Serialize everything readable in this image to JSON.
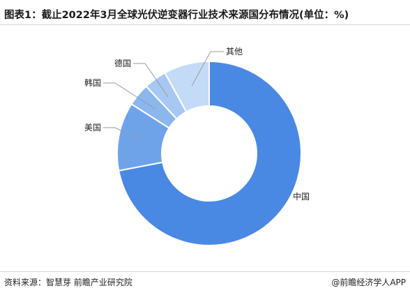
{
  "title": "图表1：截止2022年3月全球光伏逆变器行业技术来源国分布情况(单位：%)",
  "chart_data": {
    "type": "pie",
    "style": "donut",
    "categories": [
      "中国",
      "美国",
      "韩国",
      "德国",
      "其他"
    ],
    "values": [
      72,
      12,
      4,
      4,
      8
    ],
    "colors": [
      "#4a89e3",
      "#6ea3ea",
      "#8cb6ee",
      "#a7c8f2",
      "#c4dbf8"
    ],
    "legend": "none"
  },
  "footer": {
    "source": "资料来源：智慧芽 前瞻产业研究院",
    "brand": "@前瞻经济学人APP"
  }
}
